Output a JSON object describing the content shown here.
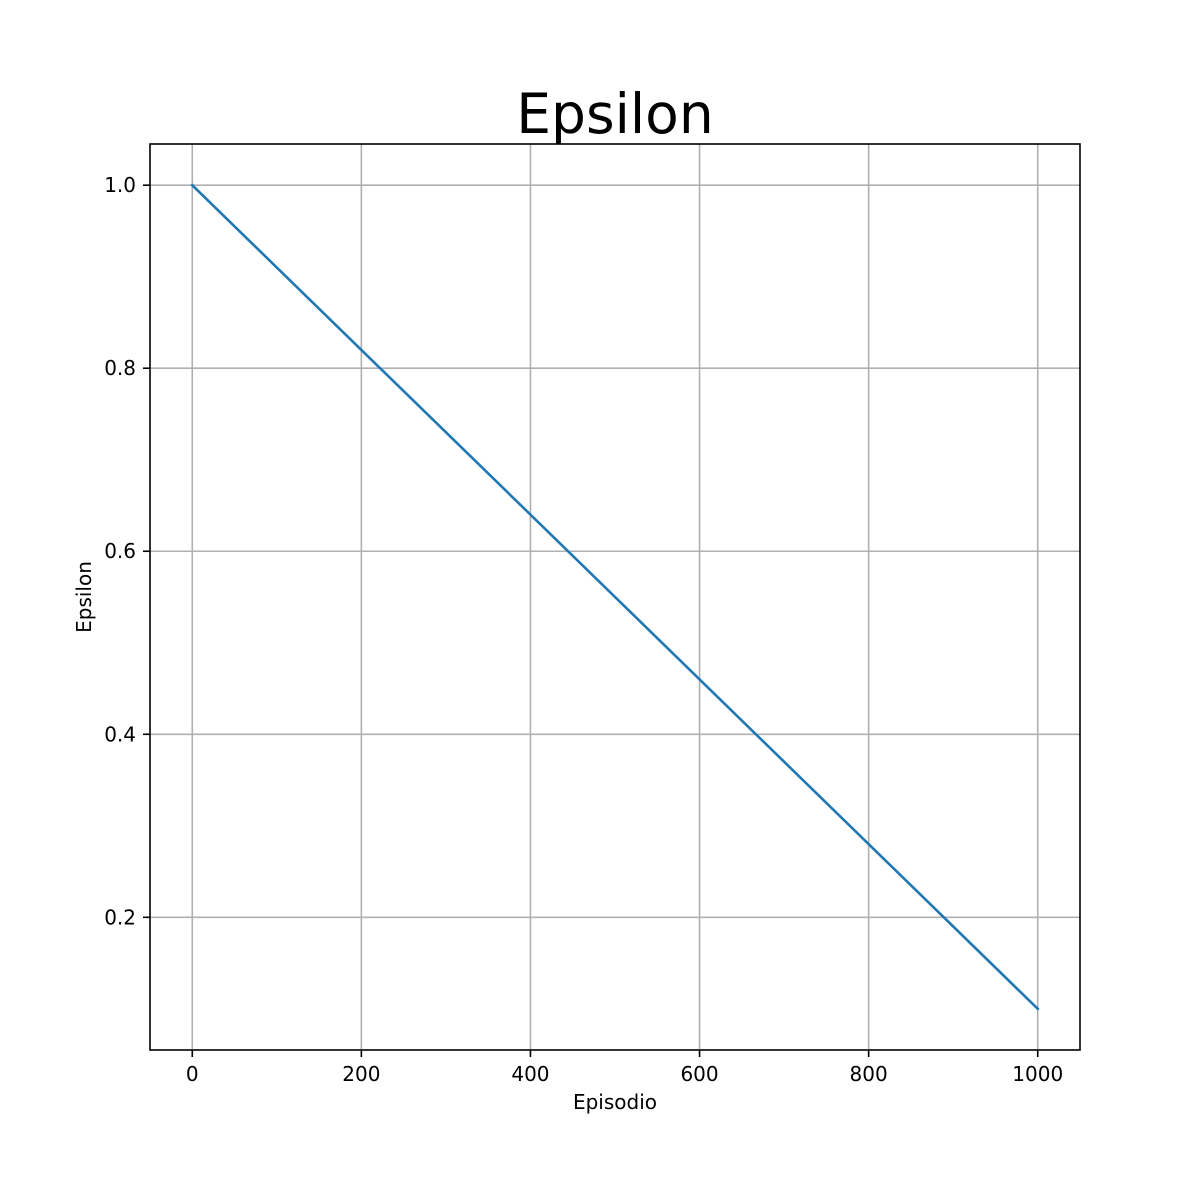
{
  "chart_data": {
    "type": "line",
    "title": "Epsilon",
    "xlabel": "Episodio",
    "ylabel": "Epsilon",
    "xlim": [
      -50,
      1050
    ],
    "ylim": [
      0.055,
      1.045
    ],
    "xticks": [
      0,
      200,
      400,
      600,
      800,
      1000
    ],
    "xtick_labels": [
      "0",
      "200",
      "400",
      "600",
      "800",
      "1000"
    ],
    "yticks": [
      0.2,
      0.4,
      0.6,
      0.8,
      1.0
    ],
    "ytick_labels": [
      "0.2",
      "0.4",
      "0.6",
      "0.8",
      "1.0"
    ],
    "grid": true,
    "series": [
      {
        "color": "#1f77b4",
        "x": [
          0,
          1000
        ],
        "y": [
          1.0,
          0.1
        ]
      }
    ]
  }
}
